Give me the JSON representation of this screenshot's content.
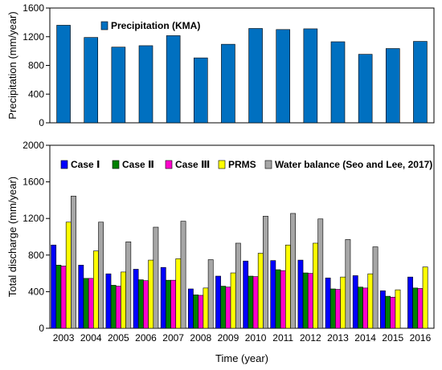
{
  "chart_data": [
    {
      "type": "bar",
      "categories": [
        "2003",
        "2004",
        "2005",
        "2006",
        "2007",
        "2008",
        "2009",
        "2010",
        "2011",
        "2012",
        "2013",
        "2014",
        "2015",
        "2016"
      ],
      "series": [
        {
          "name": "Precipitation (KMA)",
          "values": [
            1360,
            1190,
            1055,
            1075,
            1215,
            905,
            1095,
            1315,
            1300,
            1310,
            1130,
            955,
            1035,
            1135
          ],
          "color": "#0070C0"
        }
      ],
      "ylabel": "Precipitation (mm/year)",
      "ylim": [
        0,
        1600
      ],
      "yticks": [
        0,
        400,
        800,
        1200,
        1600
      ],
      "legend_position": "top-left",
      "grid": false
    },
    {
      "type": "bar",
      "categories": [
        "2003",
        "2004",
        "2005",
        "2006",
        "2007",
        "2008",
        "2009",
        "2010",
        "2011",
        "2012",
        "2013",
        "2014",
        "2015",
        "2016"
      ],
      "series": [
        {
          "name": "Case Ⅰ",
          "values": [
            910,
            690,
            595,
            645,
            665,
            430,
            570,
            735,
            740,
            745,
            550,
            575,
            410,
            560
          ],
          "color": "#0000FF"
        },
        {
          "name": "Case Ⅱ",
          "values": [
            690,
            545,
            470,
            530,
            525,
            365,
            460,
            570,
            640,
            605,
            430,
            450,
            350,
            440
          ],
          "color": "#008000"
        },
        {
          "name": "Case Ⅲ",
          "values": [
            680,
            545,
            460,
            520,
            525,
            360,
            450,
            565,
            630,
            600,
            425,
            440,
            340,
            435
          ],
          "color": "#FF00CC"
        },
        {
          "name": "PRMS",
          "values": [
            1160,
            845,
            615,
            745,
            760,
            440,
            605,
            820,
            910,
            930,
            560,
            595,
            420,
            670
          ],
          "color": "#FFFF00"
        },
        {
          "name": "Water balance (Seo and Lee, 2017)",
          "values": [
            1445,
            1160,
            945,
            1105,
            1170,
            750,
            930,
            1225,
            1255,
            1195,
            970,
            890,
            null,
            null
          ],
          "color": "#A6A6A6"
        }
      ],
      "xlabel": "Time (year)",
      "ylabel": "Total discharge (mm/year)",
      "ylim": [
        0,
        2000
      ],
      "yticks": [
        0,
        400,
        800,
        1200,
        1600,
        2000
      ],
      "legend_position": "top",
      "grid": false
    }
  ]
}
